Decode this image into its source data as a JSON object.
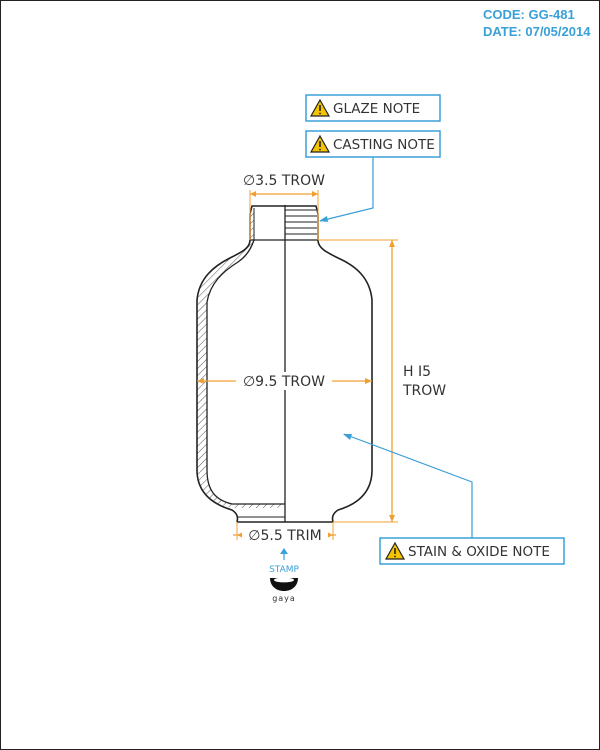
{
  "header": {
    "code": "CODE: GG-481",
    "date": "DATE: 07/05/2014"
  },
  "notes": {
    "glaze": "GLAZE NOTE",
    "casting": "CASTING NOTE",
    "stain_oxide": "STAIN & OXIDE NOTE"
  },
  "dimensions": {
    "neck": "∅3.5 TROW",
    "body": "∅9.5 TROW",
    "base": "∅5.5 TRIM",
    "height_line1": "H I5",
    "height_line2": "TROW"
  },
  "stamp": {
    "label": "STAMP",
    "brand": "gaya"
  },
  "colors": {
    "accent_blue": "#3aa0d8",
    "dimension_orange": "#f0a030",
    "warning_yellow": "#f5c400"
  }
}
